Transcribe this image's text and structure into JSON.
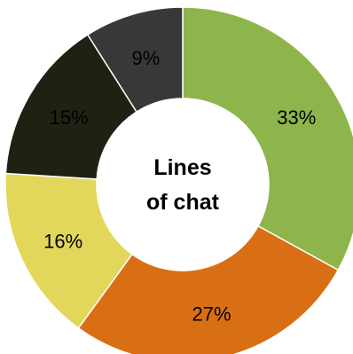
{
  "chart_data": {
    "type": "pie",
    "variant": "donut",
    "title_lines": [
      "Lines",
      "of chat"
    ],
    "start": "top",
    "direction": "clockwise",
    "slices": [
      {
        "value": 33,
        "label": "33%",
        "color": "#8db54b",
        "label_color": "#000000"
      },
      {
        "value": 27,
        "label": "27%",
        "color": "#d96f14",
        "label_color": "#000000"
      },
      {
        "value": 16,
        "label": "16%",
        "color": "#e2d75a",
        "label_color": "#000000"
      },
      {
        "value": 15,
        "label": "15%",
        "color": "#1f2113",
        "label_color": "#ffffff"
      },
      {
        "value": 9,
        "label": "9%",
        "color": "#383838",
        "label_color": "#ffffff"
      }
    ],
    "slice_border_color": "#ffffff"
  }
}
